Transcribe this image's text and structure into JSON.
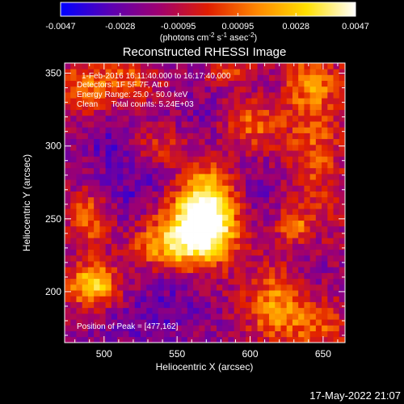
{
  "chart_data": {
    "type": "heatmap",
    "title": "Reconstructed RHESSI Image",
    "xlabel": "Heliocentric X (arcsec)",
    "ylabel": "Heliocentric Y (arcsec)",
    "xlim": [
      473,
      665
    ],
    "ylim": [
      165,
      357
    ],
    "x_ticks": [
      500,
      550,
      600,
      650
    ],
    "y_ticks": [
      200,
      250,
      300,
      350
    ],
    "colorbar": {
      "tick_labels": [
        "-0.0047",
        "-0.0028",
        "-0.00095",
        "0.00095",
        "0.0028",
        "0.0047"
      ],
      "tick_values": [
        -0.0047,
        -0.0028,
        -0.00095,
        0.00095,
        0.0028,
        0.0047
      ],
      "range": [
        -0.0047,
        0.0047
      ],
      "unit_text": "(photons cm",
      "unit_exp1": "-2",
      "unit_mid": " s",
      "unit_exp2": "-1",
      "unit_mid2": " asec",
      "unit_exp3": "-2",
      "unit_close": ")",
      "colors": [
        "#0000ff",
        "#5a00b4",
        "#9f0070",
        "#e01e00",
        "#ff8800",
        "#ffe000",
        "#ffffff"
      ]
    },
    "annotations": {
      "time": "1-Feb-2016 16:11:40.000 to 16:17:40.000",
      "detectors": "Detectors: 1F 5F 7F, Att 0",
      "energy": "Energy Range: 25.0 - 50.0 keV",
      "method": "Clean      Total counts: 5.24E+03",
      "peak": "Position of Peak = [477,162]"
    },
    "sources": [
      {
        "x": 572,
        "y": 255,
        "sx": 14,
        "sy": 22,
        "amp": 1.0
      },
      {
        "x": 555,
        "y": 245,
        "sx": 18,
        "sy": 14,
        "amp": 0.55
      },
      {
        "x": 545,
        "y": 230,
        "sx": 18,
        "sy": 10,
        "amp": 0.45
      },
      {
        "x": 620,
        "y": 190,
        "sx": 16,
        "sy": 18,
        "amp": 0.55
      },
      {
        "x": 492,
        "y": 205,
        "sx": 12,
        "sy": 10,
        "amp": 0.75
      },
      {
        "x": 490,
        "y": 250,
        "sx": 10,
        "sy": 14,
        "amp": 0.45
      },
      {
        "x": 490,
        "y": 340,
        "sx": 14,
        "sy": 14,
        "amp": 0.45
      },
      {
        "x": 520,
        "y": 345,
        "sx": 12,
        "sy": 10,
        "amp": 0.35
      },
      {
        "x": 600,
        "y": 315,
        "sx": 16,
        "sy": 12,
        "amp": 0.45
      },
      {
        "x": 645,
        "y": 300,
        "sx": 14,
        "sy": 40,
        "amp": 0.35
      },
      {
        "x": 535,
        "y": 300,
        "sx": 14,
        "sy": 10,
        "amp": 0.3
      },
      {
        "x": 640,
        "y": 345,
        "sx": 14,
        "sy": 12,
        "amp": 0.35
      },
      {
        "x": 650,
        "y": 175,
        "sx": 14,
        "sy": 12,
        "amp": 0.3
      },
      {
        "x": 590,
        "y": 350,
        "sx": 14,
        "sy": 8,
        "amp": 0.3
      },
      {
        "x": 630,
        "y": 245,
        "sx": 8,
        "sy": 8,
        "amp": 0.4
      }
    ],
    "negative_regions": [
      {
        "x": 520,
        "y": 270,
        "sx": 18,
        "sy": 18,
        "amp": 0.6
      },
      {
        "x": 505,
        "y": 305,
        "sx": 16,
        "sy": 14,
        "amp": 0.6
      },
      {
        "x": 575,
        "y": 315,
        "sx": 16,
        "sy": 16,
        "amp": 0.55
      },
      {
        "x": 545,
        "y": 190,
        "sx": 20,
        "sy": 14,
        "amp": 0.55
      },
      {
        "x": 600,
        "y": 270,
        "sx": 14,
        "sy": 14,
        "amp": 0.5
      },
      {
        "x": 640,
        "y": 215,
        "sx": 10,
        "sy": 14,
        "amp": 0.5
      },
      {
        "x": 610,
        "y": 345,
        "sx": 14,
        "sy": 8,
        "amp": 0.4
      },
      {
        "x": 515,
        "y": 175,
        "sx": 16,
        "sy": 8,
        "amp": 0.4
      }
    ],
    "footer_date": "17-May-2022 21:07"
  }
}
